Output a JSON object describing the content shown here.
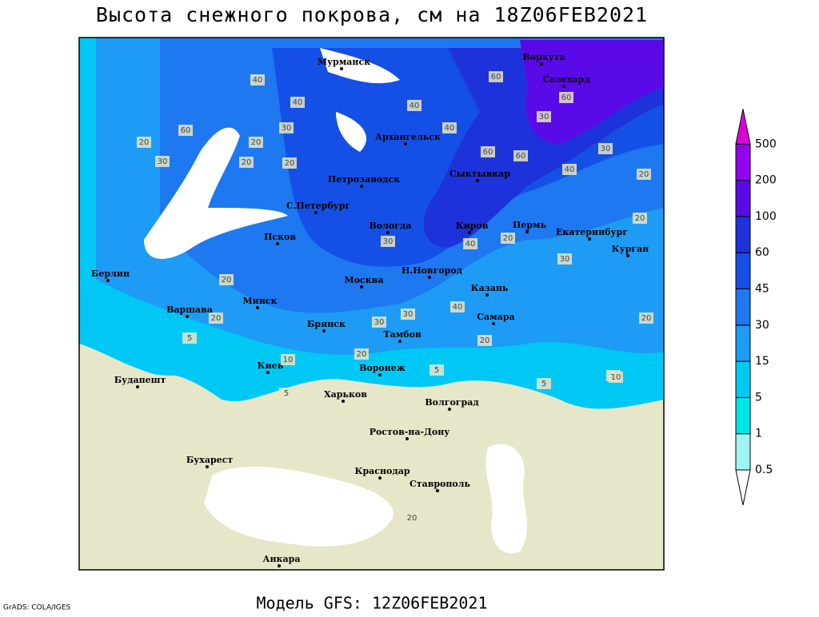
{
  "header": {
    "title": "Высота снежного покрова, см на 18Z06FEB2021"
  },
  "footer": {
    "model": "Модель GFS: 12Z06FEB2021",
    "credit": "GrADS: COLA/IGES"
  },
  "colorbar": {
    "levels": [
      0.5,
      1,
      5,
      15,
      30,
      45,
      60,
      100,
      200,
      500
    ],
    "colors": [
      "#ffffff",
      "#9ff5f5",
      "#00e6e6",
      "#00c8f5",
      "#1e9bf5",
      "#1e78f0",
      "#1450e6",
      "#1e32dc",
      "#5a0ae6",
      "#9600f0",
      "#dc00dc"
    ]
  },
  "cities": [
    "Мурманск",
    "Воркута",
    "Салехард",
    "Архангельск",
    "Петрозаводск",
    "Сыктывкар",
    "С.Петербург",
    "Вологда",
    "Киров",
    "Пермь",
    "Екатеринбург",
    "Курган",
    "Псков",
    "Берлин",
    "Москва",
    "Н.Новгород",
    "Казань",
    "Минск",
    "Варшава",
    "Брянск",
    "Тамбов",
    "Самара",
    "Киев",
    "Воронеж",
    "Будапешт",
    "Харьков",
    "Волгоград",
    "Ростов-на-Дону",
    "Бухарест",
    "Краснодар",
    "Ставрополь",
    "Анкара"
  ],
  "contour_labels": [
    "40",
    "40",
    "60",
    "30",
    "20",
    "60",
    "40",
    "60",
    "30",
    "20",
    "30",
    "20",
    "20",
    "40",
    "30",
    "60",
    "60",
    "40",
    "40",
    "30",
    "20",
    "20",
    "20",
    "30",
    "40",
    "30",
    "20",
    "20",
    "30",
    "20",
    "10",
    "5",
    "10",
    "5",
    "5",
    "20",
    "20",
    "10",
    "5",
    "20"
  ]
}
